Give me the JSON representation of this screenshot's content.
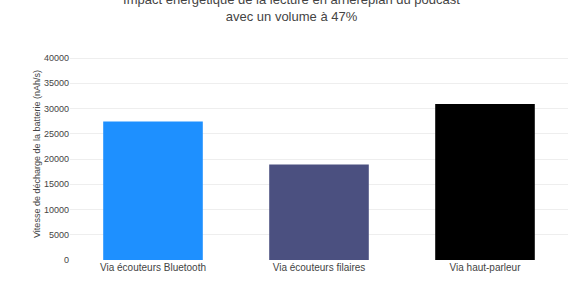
{
  "chart_data": {
    "type": "bar",
    "title": "Impact énergétique de la lecture en arrièreplan du podcast",
    "subtitle": "avec un volume à 47%",
    "categories": [
      "Via écouteurs Bluetooth",
      "Via écouteurs filaires",
      "Via haut-parleur"
    ],
    "values": [
      27420,
      18929,
      30903
    ],
    "colors": [
      "#1E90FF",
      "#4B5080",
      "#000000"
    ],
    "ylabel": "Vitesse de décharge de la batterie (nAh/s)",
    "ylim": [
      0,
      42000
    ],
    "yticks": [
      0,
      5000,
      10000,
      15000,
      20000,
      25000,
      30000,
      35000,
      40000
    ],
    "grid": true
  }
}
